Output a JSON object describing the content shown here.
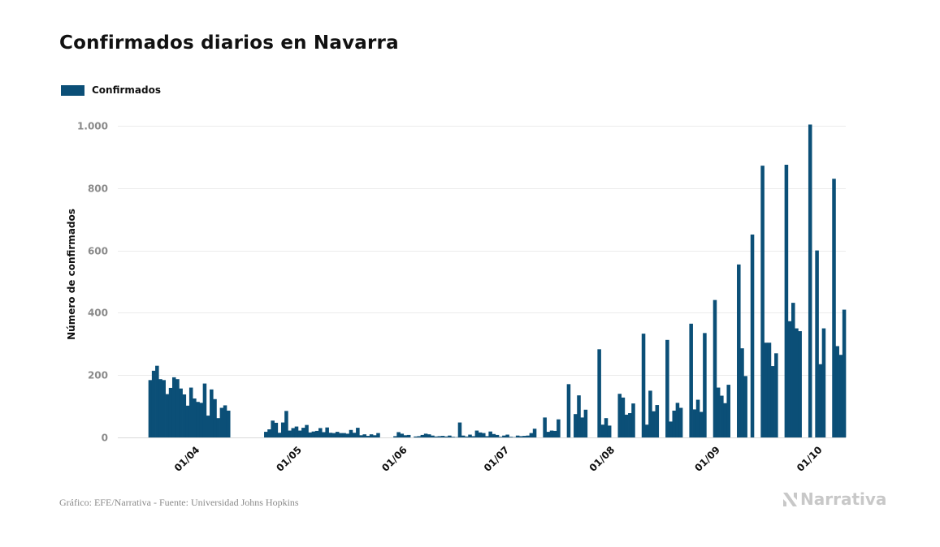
{
  "title": "Confirmados diarios en Navarra",
  "legend": {
    "label": "Confirmados",
    "color": "#0b4f77"
  },
  "footer": {
    "source": "Gráfico: EFE/Narrativa - Fuente: Universidad Johns Hopkins",
    "brand": "Narrativa",
    "brand_icon": "narrativa-logo-icon"
  },
  "chart_data": {
    "type": "bar",
    "title": "Confirmados diarios en Navarra",
    "ylabel": "Número de confirmados",
    "xlabel": "",
    "ylim": [
      0,
      1000
    ],
    "yticks": [
      0,
      200,
      400,
      600,
      800,
      1000
    ],
    "ytick_labels": [
      "0",
      "200",
      "400",
      "600",
      "800",
      "1.000"
    ],
    "grid": true,
    "legend_position": "top-left",
    "x_range": [
      "2020-03-09",
      "2020-10-09"
    ],
    "xticks": [
      {
        "date": "2020-04-01",
        "label": "01/04"
      },
      {
        "date": "2020-05-01",
        "label": "01/05"
      },
      {
        "date": "2020-06-01",
        "label": "01/06"
      },
      {
        "date": "2020-07-01",
        "label": "01/07"
      },
      {
        "date": "2020-08-01",
        "label": "01/08"
      },
      {
        "date": "2020-09-01",
        "label": "01/09"
      },
      {
        "date": "2020-10-01",
        "label": "01/10"
      }
    ],
    "series": [
      {
        "name": "Confirmados",
        "color": "#0b4f77",
        "start_date": "2020-03-18",
        "values": [
          184,
          214,
          230,
          187,
          184,
          139,
          159,
          193,
          187,
          157,
          138,
          102,
          160,
          125,
          114,
          111,
          173,
          70,
          154,
          123,
          62,
          95,
          103,
          86,
          0,
          0,
          0,
          0,
          0,
          0,
          0,
          0,
          0,
          0,
          18,
          26,
          54,
          47,
          15,
          48,
          85,
          22,
          30,
          35,
          22,
          31,
          40,
          16,
          19,
          21,
          30,
          17,
          32,
          15,
          14,
          18,
          14,
          14,
          12,
          24,
          15,
          31,
          7,
          10,
          5,
          10,
          7,
          14,
          0,
          0,
          0,
          0,
          4,
          17,
          12,
          7,
          8,
          0,
          3,
          4,
          8,
          12,
          10,
          6,
          3,
          4,
          5,
          3,
          6,
          2,
          1,
          48,
          6,
          3,
          9,
          4,
          22,
          16,
          14,
          4,
          19,
          11,
          8,
          2,
          6,
          9,
          2,
          1,
          6,
          4,
          5,
          6,
          14,
          28,
          0,
          0,
          64,
          18,
          22,
          21,
          58,
          0,
          0,
          171,
          0,
          75,
          135,
          64,
          89,
          0,
          0,
          0,
          283,
          41,
          62,
          38,
          0,
          0,
          140,
          128,
          73,
          78,
          109,
          0,
          0,
          333,
          41,
          150,
          84,
          104,
          0,
          0,
          313,
          51,
          86,
          111,
          95,
          0,
          0,
          365,
          90,
          121,
          82,
          335,
          0,
          0,
          441,
          160,
          134,
          110,
          169,
          0,
          0,
          555,
          286,
          197,
          0,
          651,
          0,
          0,
          872,
          304,
          304,
          229,
          270,
          0,
          0,
          875,
          373,
          432,
          350,
          341,
          0,
          0,
          1004,
          0,
          600,
          235,
          350,
          0,
          0,
          830,
          293,
          265,
          410
        ]
      }
    ]
  }
}
